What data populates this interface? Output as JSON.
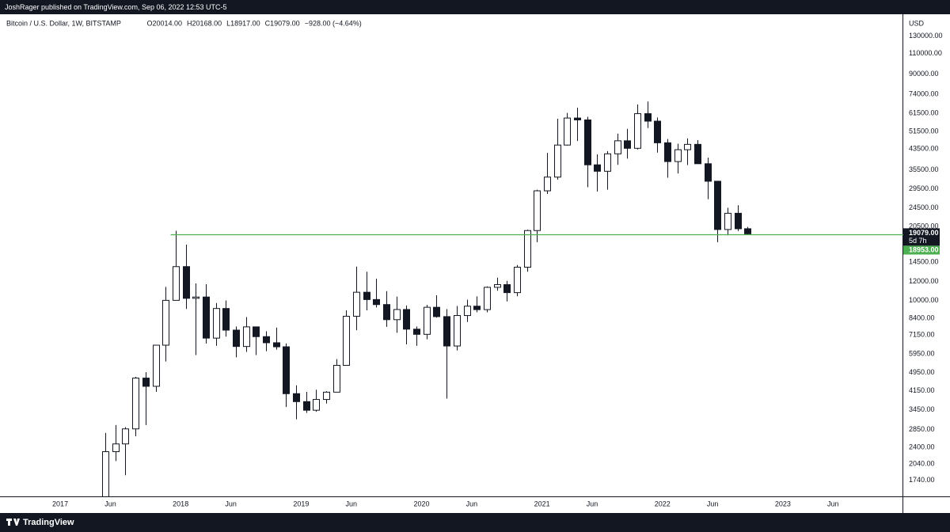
{
  "header": "JoshRager published on TradingView.com, Sep 06, 2022 12:53 UTC-5",
  "footer": "TradingView",
  "chart_data": {
    "type": "candlestick",
    "title": "Bitcoin / U.S. Dollar, 1W, BITSTAMP",
    "ohlc_text": [
      "O20014.00",
      "H20168.00",
      "L18917.00",
      "C19079.00",
      "−928.00 (−4.64%)"
    ],
    "y_unit": "USD",
    "log_scale": true,
    "grid": false,
    "up_color": "#ffffff",
    "down_color": "#131722",
    "wick_color": "#131722",
    "x": [
      "2017-05",
      "2017-06",
      "2017-07",
      "2017-08",
      "2017-09",
      "2017-10",
      "2017-11",
      "2017-12",
      "2018-01",
      "2018-02",
      "2018-03",
      "2018-04",
      "2018-05",
      "2018-06",
      "2018-07",
      "2018-08",
      "2018-09",
      "2018-10",
      "2018-11",
      "2018-12",
      "2019-01",
      "2019-02",
      "2019-03",
      "2019-04",
      "2019-05",
      "2019-06",
      "2019-07",
      "2019-08",
      "2019-09",
      "2019-10",
      "2019-11",
      "2019-12",
      "2020-01",
      "2020-02",
      "2020-03",
      "2020-04",
      "2020-05",
      "2020-06",
      "2020-07",
      "2020-08",
      "2020-09",
      "2020-10",
      "2020-11",
      "2020-12",
      "2021-01",
      "2021-02",
      "2021-03",
      "2021-04",
      "2021-05",
      "2021-06",
      "2021-07",
      "2021-08",
      "2021-09",
      "2021-10",
      "2021-11",
      "2021-12",
      "2022-01",
      "2022-02",
      "2022-03",
      "2022-04",
      "2022-05",
      "2022-06",
      "2022-07",
      "2022-08",
      "2022-09"
    ],
    "open": [
      1350,
      2300,
      2480,
      2870,
      4700,
      4340,
      6470,
      10000,
      13880,
      10200,
      10330,
      6930,
      9240,
      7490,
      6390,
      7730,
      7030,
      6625,
      6370,
      4040,
      3740,
      3440,
      3820,
      4100,
      5320,
      8570,
      10820,
      10080,
      9600,
      8290,
      9150,
      7560,
      7190,
      9350,
      8540,
      6420,
      8630,
      9450,
      9140,
      11350,
      11650,
      10780,
      13800,
      19700,
      28980,
      33110,
      45200,
      58760,
      57700,
      37300,
      35040,
      41500,
      47100,
      43800,
      61300,
      57000,
      46200,
      38500,
      43200,
      45500,
      37700,
      31800,
      19900,
      23300,
      20050
    ],
    "high": [
      2760,
      2980,
      2920,
      4760,
      4980,
      6470,
      11400,
      19666,
      17180,
      11790,
      11700,
      9750,
      9990,
      7760,
      8500,
      7750,
      7410,
      7680,
      6580,
      4380,
      4110,
      4200,
      4140,
      5650,
      9080,
      13880,
      13200,
      12330,
      10940,
      10370,
      9510,
      7760,
      9570,
      10500,
      9190,
      9470,
      10070,
      10390,
      11450,
      12470,
      12090,
      14100,
      19860,
      29300,
      41900,
      58350,
      61780,
      64900,
      59500,
      41300,
      42600,
      50500,
      52900,
      67000,
      69000,
      59100,
      47900,
      45800,
      48200,
      47400,
      40000,
      31900,
      24600,
      25200,
      20400
    ],
    "low": [
      1350,
      2100,
      1830,
      2670,
      2980,
      4110,
      5520,
      10000,
      9200,
      5880,
      6570,
      6430,
      7030,
      5750,
      6060,
      5880,
      6100,
      6200,
      3550,
      3150,
      3350,
      3390,
      3670,
      4090,
      5320,
      7480,
      9080,
      9330,
      7730,
      7300,
      6520,
      6430,
      6850,
      8450,
      3850,
      6150,
      8100,
      8900,
      8900,
      10980,
      9900,
      10400,
      13200,
      17600,
      28100,
      32300,
      44970,
      47000,
      30000,
      28800,
      29300,
      37300,
      39600,
      43300,
      53300,
      42000,
      32900,
      34300,
      37200,
      37700,
      26700,
      17600,
      18800,
      19600,
      18917
    ],
    "close": [
      2300,
      2480,
      2870,
      4700,
      4340,
      6470,
      10000,
      13880,
      10200,
      10330,
      6930,
      9240,
      7490,
      6390,
      7730,
      7030,
      6625,
      6370,
      4040,
      3740,
      3440,
      3820,
      4100,
      5320,
      8570,
      10820,
      10080,
      9600,
      8290,
      9150,
      7560,
      7190,
      9350,
      8540,
      6420,
      8630,
      9450,
      9140,
      11350,
      11650,
      10780,
      13800,
      19700,
      28980,
      33110,
      45200,
      58760,
      57700,
      37300,
      35040,
      41500,
      47100,
      43800,
      61300,
      57000,
      46200,
      38500,
      43200,
      45500,
      37700,
      31800,
      19900,
      23300,
      20050,
      19079
    ],
    "xlim": [
      "2016-07",
      "2024-01"
    ],
    "xticks": [
      {
        "value": "2017-01",
        "label": "2017"
      },
      {
        "value": "2017-06",
        "label": "Jun"
      },
      {
        "value": "2018-01",
        "label": "2018"
      },
      {
        "value": "2018-06",
        "label": "Jun"
      },
      {
        "value": "2019-01",
        "label": "2019"
      },
      {
        "value": "2019-06",
        "label": "Jun"
      },
      {
        "value": "2020-01",
        "label": "2020"
      },
      {
        "value": "2020-06",
        "label": "Jun"
      },
      {
        "value": "2021-01",
        "label": "2021"
      },
      {
        "value": "2021-06",
        "label": "Jun"
      },
      {
        "value": "2022-01",
        "label": "2022"
      },
      {
        "value": "2022-06",
        "label": "Jun"
      },
      {
        "value": "2023-01",
        "label": "2023"
      },
      {
        "value": "2023-06",
        "label": "Jun"
      }
    ],
    "ylim": [
      1490,
      161000
    ],
    "yticks": [
      {
        "value": 1740,
        "label": "1740.00"
      },
      {
        "value": 2040,
        "label": "2040.00"
      },
      {
        "value": 2400,
        "label": "2400.00"
      },
      {
        "value": 2850,
        "label": "2850.00"
      },
      {
        "value": 3450,
        "label": "3450.00"
      },
      {
        "value": 4150,
        "label": "4150.00"
      },
      {
        "value": 4950,
        "label": "4950.00"
      },
      {
        "value": 5950,
        "label": "5950.00"
      },
      {
        "value": 7150,
        "label": "7150.00"
      },
      {
        "value": 8400,
        "label": "8400.00"
      },
      {
        "value": 10000,
        "label": "10000.00"
      },
      {
        "value": 12000,
        "label": "12000.00"
      },
      {
        "value": 14500,
        "label": "14500.00"
      },
      {
        "value": 20500,
        "label": "20500.00"
      },
      {
        "value": 24500,
        "label": "24500.00"
      },
      {
        "value": 29500,
        "label": "29500.00"
      },
      {
        "value": 35500,
        "label": "35500.00"
      },
      {
        "value": 43500,
        "label": "43500.00"
      },
      {
        "value": 51500,
        "label": "51500.00"
      },
      {
        "value": 61500,
        "label": "61500.00"
      },
      {
        "value": 74000,
        "label": "74000.00"
      },
      {
        "value": 90000,
        "label": "90000.00"
      },
      {
        "value": 110000,
        "label": "110000.00"
      },
      {
        "value": 130000,
        "label": "130000.00"
      }
    ],
    "hline": {
      "value": 18953,
      "label": "18953.00",
      "color": "#4caf50"
    },
    "last_price": {
      "value": 19079,
      "label": "19079.00",
      "countdown": "5d 7h",
      "color": "#131722"
    }
  }
}
